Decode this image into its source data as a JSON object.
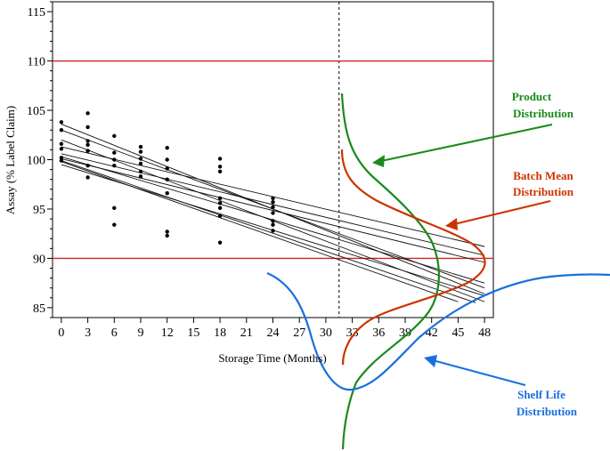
{
  "chart_data": {
    "type": "scatter",
    "title": "",
    "xlabel": "Storage Time (Months)",
    "ylabel": "Assay (% Label Claim)",
    "xlim": [
      -1,
      49
    ],
    "ylim": [
      84,
      116
    ],
    "x_ticks": [
      0,
      3,
      6,
      9,
      12,
      15,
      18,
      21,
      24,
      27,
      30,
      33,
      36,
      39,
      42,
      45,
      48
    ],
    "y_ticks": [
      85,
      90,
      95,
      100,
      105,
      110,
      115
    ],
    "grid": false,
    "spec_limits": [
      90,
      110
    ],
    "reference_month": 31.5,
    "observations": [
      {
        "x": 0,
        "y": 103.8
      },
      {
        "x": 0,
        "y": 103.0
      },
      {
        "x": 0,
        "y": 101.6
      },
      {
        "x": 0,
        "y": 101.1
      },
      {
        "x": 0,
        "y": 100.2
      },
      {
        "x": 0,
        "y": 99.9
      },
      {
        "x": 3,
        "y": 104.7
      },
      {
        "x": 3,
        "y": 103.3
      },
      {
        "x": 3,
        "y": 101.9
      },
      {
        "x": 3,
        "y": 101.5
      },
      {
        "x": 3,
        "y": 100.9
      },
      {
        "x": 3,
        "y": 99.4
      },
      {
        "x": 3,
        "y": 98.2
      },
      {
        "x": 6,
        "y": 102.4
      },
      {
        "x": 6,
        "y": 100.7
      },
      {
        "x": 6,
        "y": 100.0
      },
      {
        "x": 6,
        "y": 99.4
      },
      {
        "x": 6,
        "y": 95.1
      },
      {
        "x": 6,
        "y": 93.4
      },
      {
        "x": 9,
        "y": 101.3
      },
      {
        "x": 9,
        "y": 100.8
      },
      {
        "x": 9,
        "y": 100.1
      },
      {
        "x": 9,
        "y": 99.6
      },
      {
        "x": 9,
        "y": 98.8
      },
      {
        "x": 9,
        "y": 98.3
      },
      {
        "x": 12,
        "y": 101.2
      },
      {
        "x": 12,
        "y": 100.0
      },
      {
        "x": 12,
        "y": 99.1
      },
      {
        "x": 12,
        "y": 98.0
      },
      {
        "x": 12,
        "y": 96.6
      },
      {
        "x": 12,
        "y": 92.7
      },
      {
        "x": 12,
        "y": 92.3
      },
      {
        "x": 18,
        "y": 100.1
      },
      {
        "x": 18,
        "y": 99.3
      },
      {
        "x": 18,
        "y": 98.8
      },
      {
        "x": 18,
        "y": 96.1
      },
      {
        "x": 18,
        "y": 95.6
      },
      {
        "x": 18,
        "y": 95.1
      },
      {
        "x": 18,
        "y": 94.3
      },
      {
        "x": 18,
        "y": 91.6
      },
      {
        "x": 24,
        "y": 96.1
      },
      {
        "x": 24,
        "y": 95.7
      },
      {
        "x": 24,
        "y": 95.2
      },
      {
        "x": 24,
        "y": 94.6
      },
      {
        "x": 24,
        "y": 93.8
      },
      {
        "x": 24,
        "y": 93.4
      },
      {
        "x": 24,
        "y": 92.8
      }
    ],
    "regression_lines": [
      {
        "x0": 0,
        "y0": 103.6,
        "x1": 48,
        "y1": 86.4
      },
      {
        "x0": 0,
        "y0": 103.0,
        "x1": 48,
        "y1": 87.0
      },
      {
        "x0": 0,
        "y0": 102.0,
        "x1": 48,
        "y1": 85.6
      },
      {
        "x0": 0,
        "y0": 101.3,
        "x1": 48,
        "y1": 91.2
      },
      {
        "x0": 0,
        "y0": 100.6,
        "x1": 48,
        "y1": 90.3
      },
      {
        "x0": 0,
        "y0": 100.3,
        "x1": 48,
        "y1": 87.5
      },
      {
        "x0": 0,
        "y0": 100.1,
        "x1": 48,
        "y1": 89.6
      },
      {
        "x0": 0,
        "y0": 99.9,
        "x1": 47,
        "y1": 85.5
      },
      {
        "x0": 0,
        "y0": 99.8,
        "x1": 45,
        "y1": 85.6
      },
      {
        "x0": 0,
        "y0": 99.5,
        "x1": 48,
        "y1": 86.2
      }
    ],
    "annotations": [
      {
        "name": "product",
        "lines": [
          "Product",
          "Distribution"
        ],
        "color": "#1a8a1a"
      },
      {
        "name": "batch-mean",
        "lines": [
          "Batch Mean",
          "Distribution"
        ],
        "color": "#cc3300"
      },
      {
        "name": "shelf-life",
        "lines": [
          "Shelf Life",
          "Distribution"
        ],
        "color": "#1a6fe0"
      }
    ],
    "colors": {
      "axis": "#000000",
      "spec_line": "#d42020",
      "regression": "#111111",
      "points": "#000000"
    }
  }
}
